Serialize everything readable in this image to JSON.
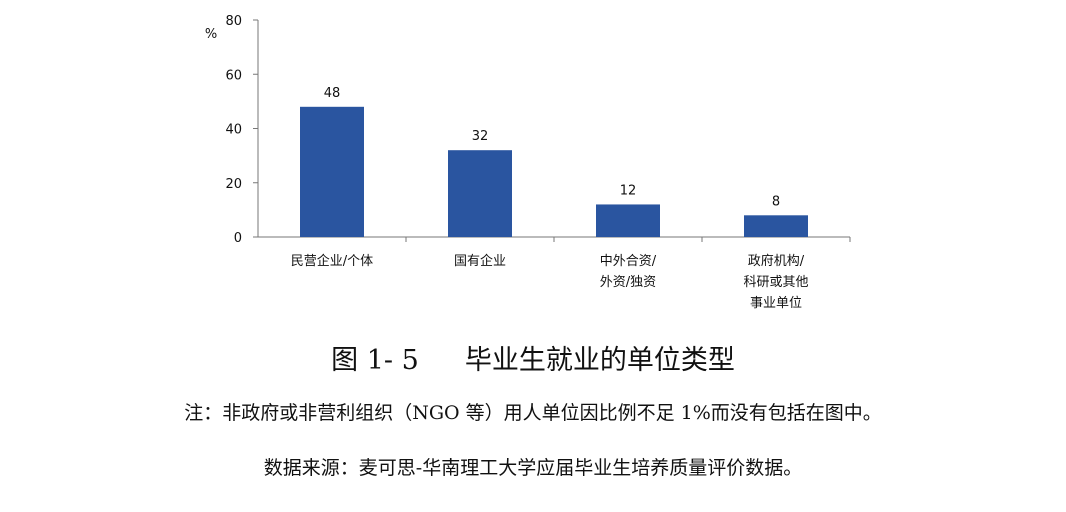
{
  "chart_data": {
    "type": "bar",
    "unit_label": "%",
    "categories": [
      [
        "民营企业/个体"
      ],
      [
        "国有企业"
      ],
      [
        "中外合资/",
        "外资/独资"
      ],
      [
        "政府机构/",
        "科研或其他",
        "事业单位"
      ]
    ],
    "values": [
      48,
      32,
      12,
      8
    ],
    "ylim": [
      0,
      80
    ],
    "yticks": [
      0,
      20,
      40,
      60,
      80
    ],
    "bar_color": "#2a55a0",
    "grid": false
  },
  "caption": {
    "figure_number": "图 1- 5",
    "title": "毕业生就业的单位类型",
    "note": "注：非政府或非营利组织（NGO 等）用人单位因比例不足 1%而没有包括在图中。",
    "source": "数据来源：麦可思-华南理工大学应届毕业生培养质量评价数据。"
  }
}
